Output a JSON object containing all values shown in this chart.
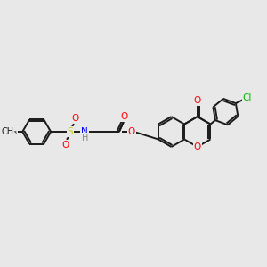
{
  "background_color": "#e8e8e8",
  "bond_color": "#1a1a1a",
  "bond_lw": 1.4,
  "aromatic_lw": 1.4,
  "colors": {
    "O": "#ff0000",
    "N": "#0000ff",
    "S": "#cccc00",
    "Cl": "#00bb00",
    "C": "#1a1a1a",
    "H": "#888888"
  },
  "font_size": 7.5
}
